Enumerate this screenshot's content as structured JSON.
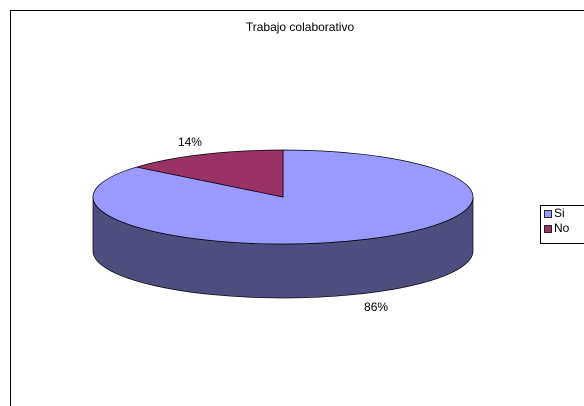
{
  "chart_data": {
    "type": "pie",
    "title": "Trabajo colaborativo",
    "categories": [
      "Si",
      "No"
    ],
    "values": [
      86,
      14
    ],
    "value_labels": [
      "86%",
      "14%"
    ],
    "colors": [
      "#9999ff",
      "#993366"
    ],
    "side_colors": [
      "#4d4d80",
      "#4d1a33"
    ],
    "legend": "right"
  }
}
